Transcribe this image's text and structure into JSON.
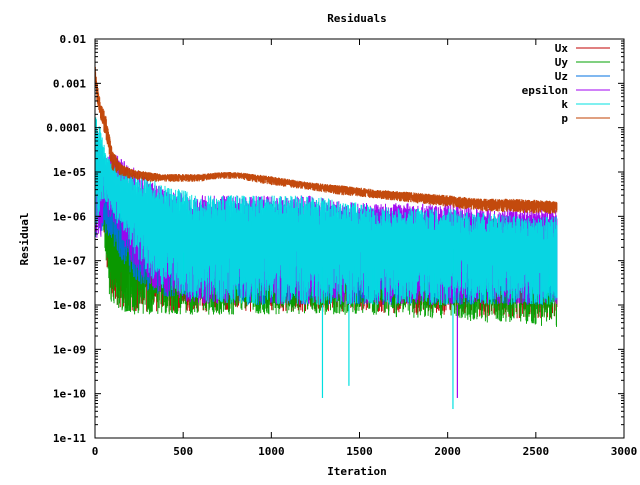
{
  "chart_data": {
    "type": "line",
    "title": "Residuals",
    "xlabel": "Iteration",
    "ylabel": "Residual",
    "xlim": [
      0,
      3000
    ],
    "ylim": [
      1e-11,
      0.01
    ],
    "yscale": "log",
    "grid": false,
    "legend_position": "top-right",
    "x_ticks": [
      {
        "value": 0,
        "label": "0"
      },
      {
        "value": 500,
        "label": "500"
      },
      {
        "value": 1000,
        "label": "1000"
      },
      {
        "value": 1500,
        "label": "1500"
      },
      {
        "value": 2000,
        "label": "2000"
      },
      {
        "value": 2500,
        "label": "2500"
      },
      {
        "value": 3000,
        "label": "3000"
      }
    ],
    "y_ticks": [
      {
        "value": 0.01,
        "label": "0.01"
      },
      {
        "value": 0.001,
        "label": "0.001"
      },
      {
        "value": 0.0001,
        "label": "0.0001"
      },
      {
        "value": 1e-05,
        "label": "1e-05"
      },
      {
        "value": 1e-06,
        "label": "1e-06"
      },
      {
        "value": 1e-07,
        "label": "1e-07"
      },
      {
        "value": 1e-08,
        "label": "1e-08"
      },
      {
        "value": 1e-09,
        "label": "1e-09"
      },
      {
        "value": 1e-10,
        "label": "1e-10"
      },
      {
        "value": 1e-11,
        "label": "1e-11"
      }
    ],
    "series": [
      {
        "name": "Ux",
        "color": "#c00000",
        "x": [
          0,
          20,
          50,
          80,
          110,
          150,
          200,
          300,
          400,
          600,
          800,
          1000,
          1200,
          1500,
          1800,
          2000,
          2200,
          2400,
          2620
        ],
        "low": [
          8e-07,
          1e-06,
          5e-07,
          2e-08,
          1e-08,
          8e-09,
          7e-09,
          7e-09,
          7e-09,
          7e-09,
          7e-09,
          7e-09,
          7e-09,
          7e-09,
          6e-09,
          6e-09,
          5e-09,
          5e-09,
          5e-09
        ],
        "high": [
          2e-05,
          3e-05,
          1.5e-05,
          3e-06,
          1e-06,
          1e-06,
          9e-07,
          9e-07,
          9e-07,
          9e-07,
          9e-07,
          9e-07,
          9e-07,
          9e-07,
          9e-07,
          9e-07,
          9e-07,
          9e-07,
          9e-07
        ]
      },
      {
        "name": "Uy",
        "color": "#00a000",
        "x": [
          0,
          20,
          50,
          80,
          110,
          150,
          200,
          300,
          400,
          600,
          800,
          1000,
          1200,
          1500,
          1800,
          2000,
          2200,
          2400,
          2620
        ],
        "low": [
          5e-07,
          8e-07,
          3e-07,
          1.5e-08,
          8e-09,
          7e-09,
          6e-09,
          6e-09,
          6e-09,
          6e-09,
          6e-09,
          6e-09,
          6e-09,
          6e-09,
          5e-09,
          5e-09,
          4e-09,
          4e-09,
          3e-09
        ],
        "high": [
          3e-05,
          5e-05,
          2e-05,
          4e-06,
          1.5e-06,
          1e-06,
          9e-07,
          9e-07,
          9e-07,
          9e-07,
          9e-07,
          9e-07,
          9e-07,
          9e-07,
          9e-07,
          9e-07,
          9e-07,
          9e-07,
          9e-07
        ]
      },
      {
        "name": "Uz",
        "color": "#0070e0",
        "x": [
          0,
          20,
          50,
          80,
          110,
          150,
          200,
          300,
          400,
          600,
          800,
          1000,
          1200,
          1500,
          1800,
          2000,
          2200,
          2400,
          2620
        ],
        "low": [
          3e-07,
          5e-07,
          4e-07,
          3e-07,
          2e-07,
          1e-07,
          5e-08,
          2e-08,
          1.5e-08,
          1.2e-08,
          1e-08,
          1e-08,
          1e-08,
          1e-08,
          1e-08,
          1e-08,
          1e-08,
          1e-08,
          1e-08
        ],
        "high": [
          0.0001,
          8e-05,
          3e-05,
          8e-06,
          6e-06,
          5e-06,
          4e-06,
          3e-06,
          2.5e-06,
          2e-06,
          2e-06,
          2e-06,
          2e-06,
          1.5e-06,
          1.5e-06,
          1.2e-06,
          1.2e-06,
          1e-06,
          1e-06
        ]
      },
      {
        "name": "epsilon",
        "color": "#a000f0",
        "x": [
          0,
          30,
          60,
          100,
          150,
          200,
          300,
          400,
          600,
          800,
          1000,
          1200,
          1500,
          1800,
          2000,
          2200,
          2400,
          2620
        ],
        "low": [
          2e-07,
          3e-07,
          1e-06,
          8e-07,
          3e-07,
          1e-07,
          3e-08,
          1.5e-08,
          1e-08,
          1e-08,
          1e-08,
          1e-08,
          1e-08,
          1e-08,
          1e-08,
          1e-08,
          1e-08,
          1e-08
        ],
        "high": [
          0.0001,
          5e-05,
          2e-05,
          3e-05,
          2e-05,
          1.5e-05,
          8e-06,
          4e-06,
          3e-06,
          3e-06,
          3e-06,
          3e-06,
          2e-06,
          2e-06,
          2e-06,
          1.5e-06,
          1.5e-06,
          1.5e-06
        ]
      },
      {
        "name": "k",
        "color": "#00e0e0",
        "x": [
          0,
          30,
          60,
          100,
          150,
          200,
          300,
          400,
          600,
          800,
          1000,
          1200,
          1500,
          1800,
          2000,
          2200,
          2400,
          2620
        ],
        "low": [
          5e-07,
          1e-06,
          2e-06,
          1e-06,
          5e-07,
          2e-07,
          5e-08,
          2e-08,
          1.2e-08,
          1e-08,
          1e-08,
          1e-08,
          1e-08,
          1e-08,
          1e-08,
          1e-08,
          1e-08,
          1e-08
        ],
        "high": [
          0.0002,
          0.0001,
          3e-05,
          1.5e-05,
          1.2e-05,
          1e-05,
          8e-06,
          5e-06,
          3e-06,
          3e-06,
          3e-06,
          3e-06,
          2e-06,
          1.5e-06,
          1.5e-06,
          1.2e-06,
          1e-06,
          1e-06
        ]
      },
      {
        "name": "p",
        "color": "#c04000",
        "x": [
          0,
          10,
          30,
          60,
          100,
          150,
          200,
          300,
          400,
          500,
          600,
          700,
          800,
          900,
          1000,
          1200,
          1400,
          1600,
          1800,
          2000,
          2200,
          2400,
          2620
        ],
        "low": [
          0.001,
          0.0004,
          0.00015,
          6e-05,
          1e-05,
          8e-06,
          7e-06,
          6e-06,
          6e-06,
          6e-06,
          6e-06,
          7e-06,
          7e-06,
          6e-06,
          5e-06,
          4e-06,
          3e-06,
          2.5e-06,
          2e-06,
          1.6e-06,
          1.3e-06,
          1.2e-06,
          1.1e-06
        ],
        "high": [
          0.003,
          0.0012,
          0.0004,
          0.0002,
          3e-05,
          1.5e-05,
          1.2e-05,
          1e-05,
          9e-06,
          9e-06,
          9e-06,
          1e-05,
          1e-05,
          9e-06,
          8e-06,
          6e-06,
          5e-06,
          4e-06,
          3.5e-06,
          3e-06,
          2.5e-06,
          2.5e-06,
          2.2e-06
        ]
      }
    ],
    "spikes": [
      {
        "series": "k",
        "x": 1290,
        "y": 8e-11
      },
      {
        "series": "k",
        "x": 1440,
        "y": 1.5e-10
      },
      {
        "series": "k",
        "x": 2030,
        "y": 4.5e-11
      },
      {
        "series": "epsilon",
        "x": 2055,
        "y": 8e-11
      }
    ]
  }
}
